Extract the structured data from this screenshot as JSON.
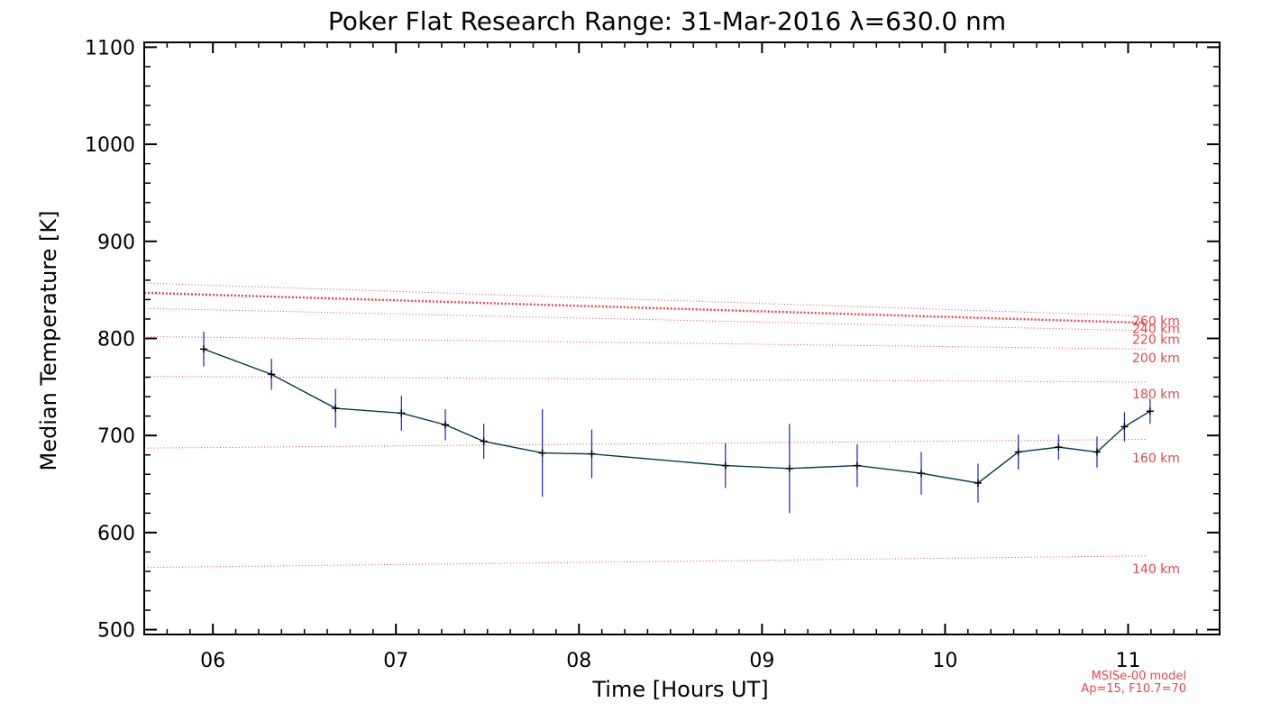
{
  "chart_data": {
    "type": "line",
    "title": "Poker Flat Research Range: 31-Mar-2016 λ=630.0 nm",
    "xlabel": "Time [Hours UT]",
    "ylabel": "Median Temperature [K]",
    "xlim": [
      5.625,
      11.5
    ],
    "ylim": [
      495,
      1105
    ],
    "xticks": [
      6,
      7,
      8,
      9,
      10,
      11
    ],
    "xtick_labels": [
      "06",
      "07",
      "08",
      "09",
      "10",
      "11"
    ],
    "yticks": [
      500,
      600,
      700,
      800,
      900,
      1000,
      1100
    ],
    "ytick_labels": [
      "500",
      "600",
      "700",
      "800",
      "900",
      "1000",
      "1100"
    ],
    "x_minor_step": 0.125,
    "y_minor_step": 20,
    "colors": {
      "series_line": "#003a46",
      "error_bar": "#1a1ae6",
      "marker": "#000000",
      "model": "#e8454a",
      "frame": "#000000"
    },
    "series": [
      {
        "name": "Median Temperature",
        "x": [
          5.95,
          6.32,
          6.67,
          7.03,
          7.27,
          7.48,
          7.8,
          8.07,
          8.8,
          9.15,
          9.52,
          9.87,
          10.18,
          10.4,
          10.62,
          10.83,
          10.98,
          11.12
        ],
        "y": [
          789,
          763,
          728,
          723,
          711,
          694,
          682,
          681,
          669,
          666,
          669,
          661,
          651,
          683,
          688,
          683,
          709,
          725
        ],
        "err": [
          18,
          16,
          20,
          18,
          16,
          18,
          45,
          25,
          23,
          46,
          22,
          22,
          20,
          18,
          13,
          16,
          15,
          13
        ]
      }
    ],
    "model_curves": [
      {
        "label": "140 km",
        "y_start": 564,
        "y_end": 576,
        "bold": false
      },
      {
        "label": "160 km",
        "y_start": 687,
        "y_end": 696,
        "bold": false
      },
      {
        "label": "180 km",
        "y_start": 761,
        "y_end": 755,
        "bold": false
      },
      {
        "label": "200 km",
        "y_start": 802,
        "y_end": 789,
        "bold": false
      },
      {
        "label": "220 km",
        "y_start": 831,
        "y_end": 808,
        "bold": false
      },
      {
        "label": "240 km",
        "y_start": 847,
        "y_end": 816,
        "bold": true
      },
      {
        "label": "260 km",
        "y_start": 857,
        "y_end": 823,
        "bold": false
      }
    ],
    "model_label_positions": [
      563,
      677,
      743,
      780,
      799,
      810,
      818
    ],
    "model_note": [
      "MSISe-00 model",
      "Ap=15, F10.7=70"
    ]
  }
}
